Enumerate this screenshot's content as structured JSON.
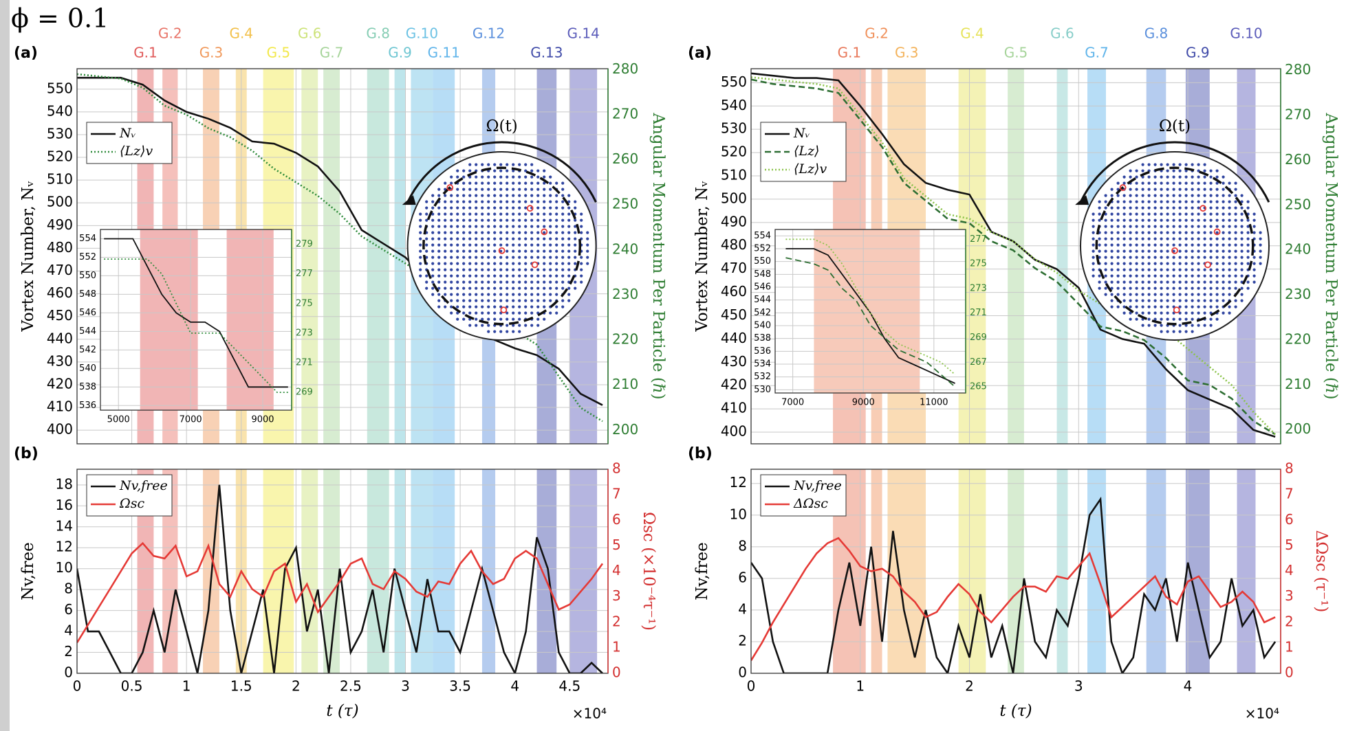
{
  "figure_label": "ϕ = 0.1",
  "chart_data": [
    {
      "type": "line",
      "panel_label": "(a)",
      "annotation": "Ω(t)",
      "ylabel": "Vortex Number, Nᵥ",
      "y2label": "Angular Momentum Per Particle (ℏ)",
      "y2color": "#2e7d32",
      "legend": "upper left",
      "grid": true,
      "x": [
        0,
        0.2,
        0.4,
        0.6,
        0.8,
        1,
        1.2,
        1.4,
        1.6,
        1.8,
        2,
        2.2,
        2.4,
        2.6,
        2.8,
        3,
        3.2,
        3.4,
        3.6,
        3.8,
        4,
        4.2,
        4.4,
        4.6,
        4.8
      ],
      "xlim": [
        0,
        4.85
      ],
      "ylim": [
        394,
        559
      ],
      "yticks": [
        400,
        410,
        420,
        430,
        440,
        450,
        460,
        470,
        480,
        490,
        500,
        510,
        520,
        530,
        540,
        550
      ],
      "y2lim": [
        197,
        280.2
      ],
      "y2ticks": [
        200,
        210,
        220,
        230,
        240,
        250,
        260,
        270,
        280
      ],
      "series": [
        {
          "name": "Nᵥ",
          "color": "#111111",
          "dash": "solid",
          "values": [
            555,
            555,
            555,
            552,
            545,
            540,
            537,
            533,
            527,
            526,
            522,
            516,
            505,
            488,
            482,
            476,
            466,
            458,
            446,
            440,
            436,
            433,
            427,
            416,
            411
          ]
        },
        {
          "name": "⟨Lz⟩v",
          "color": "#2e8b3a",
          "dash": "dotted",
          "axis": "y2",
          "values": [
            279,
            278.5,
            278,
            276,
            272,
            270,
            267,
            265,
            262,
            258,
            255,
            252,
            248,
            243,
            240,
            237,
            234,
            230,
            227,
            224,
            222,
            219,
            212,
            205,
            202
          ]
        }
      ],
      "bands": [
        {
          "label": "G.1",
          "range": [
            0.55,
            0.7
          ],
          "color": "#e05a5a"
        },
        {
          "label": "G.2",
          "range": [
            0.78,
            0.92
          ],
          "color": "#e87468"
        },
        {
          "label": "G.3",
          "range": [
            1.15,
            1.3
          ],
          "color": "#f0985a"
        },
        {
          "label": "G.4",
          "range": [
            1.45,
            1.55
          ],
          "color": "#f2c04a"
        },
        {
          "label": "G.5",
          "range": [
            1.7,
            1.98
          ],
          "color": "#f2e84a"
        },
        {
          "label": "G.6",
          "range": [
            2.05,
            2.2
          ],
          "color": "#cde37a"
        },
        {
          "label": "G.7",
          "range": [
            2.25,
            2.4
          ],
          "color": "#a6d49a"
        },
        {
          "label": "G.8",
          "range": [
            2.65,
            2.85
          ],
          "color": "#86cdb4"
        },
        {
          "label": "G.9",
          "range": [
            2.9,
            3.0
          ],
          "color": "#6fc6d2"
        },
        {
          "label": "G.10",
          "range": [
            3.05,
            3.25
          ],
          "color": "#6cc2e4"
        },
        {
          "label": "G.11",
          "range": [
            3.25,
            3.45
          ],
          "color": "#5fb4ea"
        },
        {
          "label": "G.12",
          "range": [
            3.7,
            3.82
          ],
          "color": "#5a8fdc"
        },
        {
          "label": "G.13",
          "range": [
            4.2,
            4.38
          ],
          "color": "#3f4aa8"
        },
        {
          "label": "G.14",
          "range": [
            4.5,
            4.75
          ],
          "color": "#5b5cba"
        }
      ]
    },
    {
      "type": "line",
      "panel_label": "(b)",
      "ylabel": "Nv,free",
      "y2label": "Ωsc (×10⁻⁴τ⁻¹)",
      "y2color": "#d32f2f",
      "xlabel": "t (τ)",
      "x_multiplier": "×10⁴",
      "legend": "upper left",
      "grid": true,
      "x": [
        0,
        0.1,
        0.2,
        0.3,
        0.4,
        0.5,
        0.6,
        0.7,
        0.8,
        0.9,
        1,
        1.1,
        1.2,
        1.3,
        1.4,
        1.5,
        1.6,
        1.7,
        1.8,
        1.9,
        2,
        2.1,
        2.2,
        2.3,
        2.4,
        2.5,
        2.6,
        2.7,
        2.8,
        2.9,
        3,
        3.1,
        3.2,
        3.3,
        3.4,
        3.5,
        3.6,
        3.7,
        3.8,
        3.9,
        4,
        4.1,
        4.2,
        4.3,
        4.4,
        4.5,
        4.6,
        4.7,
        4.8
      ],
      "xlim": [
        0,
        4.85
      ],
      "xticks": [
        0,
        0.5,
        1,
        1.5,
        2,
        2.5,
        3,
        3.5,
        4,
        4.5
      ],
      "ylim": [
        0,
        19.5
      ],
      "yticks": [
        0,
        2,
        4,
        6,
        8,
        10,
        12,
        14,
        16,
        18
      ],
      "y2lim": [
        0,
        8
      ],
      "y2ticks": [
        0,
        1,
        2,
        3,
        4,
        5,
        6,
        7,
        8
      ],
      "series": [
        {
          "name": "Nv,free",
          "color": "#111111",
          "dash": "solid",
          "values": [
            10,
            4,
            4,
            2,
            0,
            0,
            2,
            6,
            2,
            8,
            4,
            0,
            6,
            18,
            6,
            0,
            4,
            8,
            0,
            10,
            12,
            4,
            8,
            0,
            10,
            2,
            4,
            8,
            2,
            10,
            6,
            2,
            9,
            4,
            4,
            2,
            6,
            10,
            6,
            2,
            0,
            4,
            13,
            10,
            2,
            0,
            0,
            1,
            0
          ]
        },
        {
          "name": "Ωsc",
          "color": "#e53935",
          "dash": "solid",
          "axis": "y2",
          "values": [
            1.2,
            1.9,
            2.6,
            3.3,
            4.0,
            4.7,
            5.1,
            4.6,
            4.5,
            5.0,
            3.8,
            4.0,
            5.0,
            3.5,
            3.0,
            4.0,
            3.3,
            3.0,
            4.0,
            4.3,
            2.8,
            3.5,
            2.4,
            3.0,
            3.6,
            4.3,
            4.5,
            3.5,
            3.3,
            4.0,
            3.7,
            3.2,
            3.0,
            3.6,
            3.5,
            4.3,
            4.8,
            4.0,
            3.5,
            3.7,
            4.5,
            4.8,
            4.5,
            3.5,
            2.5,
            2.7,
            3.2,
            3.7,
            4.3
          ]
        }
      ]
    },
    {
      "type": "line",
      "y2color": "#2e7d32",
      "grid": true,
      "x": [
        4600,
        5400,
        5800,
        6200,
        6600,
        7000,
        7400,
        7800,
        8200,
        8600,
        9000,
        9400,
        9700
      ],
      "xlim": [
        4500,
        9800
      ],
      "xticks": [
        5000,
        7000,
        9000
      ],
      "ylim": [
        535.5,
        555
      ],
      "yticks": [
        536,
        538,
        540,
        542,
        544,
        546,
        548,
        550,
        552,
        554
      ],
      "y2lim": [
        267.8,
        280
      ],
      "y2ticks": [
        269,
        271,
        273,
        275,
        277,
        279
      ],
      "series": [
        {
          "color": "#111111",
          "dash": "solid",
          "values": [
            554,
            554,
            551,
            548,
            546,
            545,
            545,
            544,
            541,
            538,
            538,
            538,
            538
          ]
        },
        {
          "color": "#2e8b3a",
          "dash": "dotted",
          "axis": "y2",
          "values": [
            278,
            278,
            278,
            277,
            275,
            273,
            273,
            273,
            272,
            271,
            270,
            269,
            269
          ]
        }
      ],
      "bands": [
        {
          "range": [
            5600,
            7200
          ],
          "color": "#e05a5a"
        },
        {
          "range": [
            8000,
            9300
          ],
          "color": "#e05a5a"
        }
      ]
    },
    {
      "type": "line",
      "panel_label": "(a)",
      "annotation": "Ω(t)",
      "ylabel": "Vortex Number, Nᵥ",
      "y2label": "Angular Momentum Per Particle (ℏ)",
      "y2color": "#2e7d32",
      "legend": "upper left",
      "grid": true,
      "x": [
        0,
        0.2,
        0.4,
        0.6,
        0.8,
        1,
        1.2,
        1.4,
        1.6,
        1.8,
        2,
        2.2,
        2.4,
        2.6,
        2.8,
        3,
        3.2,
        3.4,
        3.6,
        3.8,
        4,
        4.2,
        4.4,
        4.6,
        4.8
      ],
      "xlim": [
        0,
        4.85
      ],
      "ylim": [
        395,
        556
      ],
      "yticks": [
        400,
        410,
        420,
        430,
        440,
        450,
        460,
        470,
        480,
        490,
        500,
        510,
        520,
        530,
        540,
        550
      ],
      "y2lim": [
        196.9,
        280.4
      ],
      "y2ticks": [
        200,
        210,
        220,
        230,
        240,
        250,
        260,
        270,
        280
      ],
      "series": [
        {
          "name": "Nᵥ",
          "color": "#111111",
          "dash": "solid",
          "values": [
            554,
            553,
            552,
            552,
            551,
            540,
            528,
            515,
            507,
            504,
            502,
            486,
            482,
            474,
            470,
            462,
            444,
            440,
            438,
            427,
            418,
            414,
            410,
            401,
            398
          ]
        },
        {
          "name": "⟨Lz⟩",
          "color": "#2d6e32",
          "dash": "dashed",
          "axis": "y2",
          "values": [
            278,
            277,
            276.5,
            276,
            275,
            269,
            263,
            255,
            251,
            247,
            246,
            242,
            240,
            236,
            233,
            228,
            223,
            222,
            220,
            216,
            211,
            210,
            207,
            202,
            199
          ]
        },
        {
          "name": "⟨Lz⟩v",
          "color": "#8bc34a",
          "dash": "dotted",
          "axis": "y2",
          "values": [
            278.5,
            278,
            277.5,
            277,
            276,
            270,
            264,
            256,
            252,
            248,
            247,
            244,
            242,
            238,
            235,
            231,
            228,
            227,
            225,
            222,
            218,
            214,
            210,
            204,
            199
          ]
        }
      ],
      "bands": [
        {
          "label": "G.1",
          "range": [
            0.75,
            1.05
          ],
          "color": "#e8785a"
        },
        {
          "label": "G.2",
          "range": [
            1.1,
            1.2
          ],
          "color": "#f0905a"
        },
        {
          "label": "G.3",
          "range": [
            1.25,
            1.6
          ],
          "color": "#f3b25a"
        },
        {
          "label": "G.4",
          "range": [
            1.9,
            2.15
          ],
          "color": "#e6e35a"
        },
        {
          "label": "G.5",
          "range": [
            2.35,
            2.5
          ],
          "color": "#a6d49a"
        },
        {
          "label": "G.6",
          "range": [
            2.8,
            2.9
          ],
          "color": "#86cdc8"
        },
        {
          "label": "G.7",
          "range": [
            3.08,
            3.25
          ],
          "color": "#5fb4ea"
        },
        {
          "label": "G.8",
          "range": [
            3.62,
            3.8
          ],
          "color": "#5a8fdc"
        },
        {
          "label": "G.9",
          "range": [
            3.98,
            4.2
          ],
          "color": "#3f4aa8"
        },
        {
          "label": "G.10",
          "range": [
            4.45,
            4.62
          ],
          "color": "#5b5cba"
        }
      ]
    },
    {
      "type": "line",
      "panel_label": "(b)",
      "ylabel": "Nv,free",
      "y2label": "ΔΩsc (τ⁻¹)",
      "y2color": "#d32f2f",
      "xlabel": "t (τ)",
      "x_multiplier": "×10⁴",
      "legend": "upper left",
      "grid": true,
      "x": [
        0,
        0.1,
        0.2,
        0.3,
        0.4,
        0.5,
        0.6,
        0.7,
        0.8,
        0.9,
        1,
        1.1,
        1.2,
        1.3,
        1.4,
        1.5,
        1.6,
        1.7,
        1.8,
        1.9,
        2,
        2.1,
        2.2,
        2.3,
        2.4,
        2.5,
        2.6,
        2.7,
        2.8,
        2.9,
        3,
        3.1,
        3.2,
        3.3,
        3.4,
        3.5,
        3.6,
        3.7,
        3.8,
        3.9,
        4,
        4.1,
        4.2,
        4.3,
        4.4,
        4.5,
        4.6,
        4.7,
        4.8
      ],
      "xlim": [
        0,
        4.85
      ],
      "xticks": [
        0,
        1,
        2,
        3,
        4
      ],
      "ylim": [
        0,
        12.9
      ],
      "yticks": [
        0,
        2,
        4,
        6,
        8,
        10,
        12
      ],
      "y2lim": [
        0,
        8
      ],
      "y2ticks": [
        0,
        1,
        2,
        3,
        4,
        5,
        6,
        7,
        8
      ],
      "series": [
        {
          "name": "Nv,free",
          "color": "#111111",
          "dash": "solid",
          "values": [
            7,
            6,
            2,
            0,
            0,
            0,
            0,
            0,
            4,
            7,
            3,
            8,
            2,
            9,
            4,
            1,
            4,
            1,
            0,
            3,
            1,
            5,
            1,
            3,
            0,
            6,
            2,
            1,
            4,
            3,
            6,
            10,
            11,
            2,
            0,
            1,
            5,
            4,
            6,
            2,
            7,
            4,
            1,
            2,
            6,
            3,
            4,
            1,
            2
          ]
        },
        {
          "name": "ΔΩsc",
          "color": "#e53935",
          "dash": "solid",
          "axis": "y2",
          "values": [
            0.5,
            1.2,
            2,
            2.7,
            3.4,
            4.1,
            4.7,
            5.1,
            5.3,
            4.8,
            4.2,
            4.0,
            4.1,
            3.8,
            3.2,
            2.8,
            2.2,
            2.4,
            3.0,
            3.5,
            3.1,
            2.4,
            2.0,
            2.5,
            3.0,
            3.4,
            3.4,
            3.2,
            3.8,
            3.7,
            4.2,
            4.7,
            3.5,
            2.2,
            2.6,
            3.0,
            3.4,
            3.8,
            3.0,
            2.7,
            3.6,
            3.8,
            3.2,
            2.6,
            2.8,
            3.2,
            2.8,
            2.0,
            2.2
          ]
        }
      ]
    },
    {
      "type": "line",
      "y2color": "#2e7d32",
      "grid": true,
      "x": [
        6800,
        7600,
        8000,
        8400,
        8800,
        9200,
        9600,
        10000,
        10400,
        10800,
        11200,
        11600
      ],
      "xlim": [
        6500,
        11900
      ],
      "xticks": [
        7000,
        9000,
        11000
      ],
      "ylim": [
        529.5,
        555
      ],
      "yticks": [
        530,
        532,
        534,
        536,
        538,
        540,
        542,
        544,
        546,
        548,
        550,
        552,
        554
      ],
      "y2lim": [
        264.5,
        277.8
      ],
      "y2ticks": [
        265,
        267,
        269,
        271,
        273,
        275,
        277
      ],
      "series": [
        {
          "color": "#111111",
          "dash": "solid",
          "values": [
            552,
            552,
            551,
            548,
            545,
            542,
            538,
            535,
            534,
            533,
            532,
            531
          ]
        },
        {
          "color": "#2d6e32",
          "dash": "dashed",
          "axis": "y2",
          "values": [
            275.5,
            275,
            274.5,
            273,
            272,
            270,
            269,
            268,
            267.5,
            267,
            266,
            265
          ]
        },
        {
          "color": "#8bc34a",
          "dash": "dotted",
          "axis": "y2",
          "values": [
            277,
            277,
            276.5,
            275,
            273,
            271,
            269.5,
            268.5,
            268,
            267.5,
            267,
            266
          ]
        }
      ],
      "bands": [
        {
          "range": [
            7600,
            10600
          ],
          "color": "#ee8a66"
        }
      ]
    }
  ]
}
